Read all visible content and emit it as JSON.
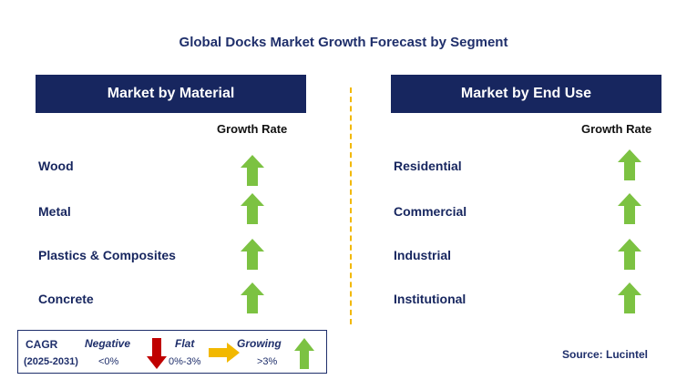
{
  "title": "Global Docks Market Growth Forecast by Segment",
  "left_panel": {
    "header": "Market by Material",
    "growth_label": "Growth Rate",
    "rows": [
      {
        "label": "Wood",
        "trend": "growing"
      },
      {
        "label": "Metal",
        "trend": "growing"
      },
      {
        "label": "Plastics & Composites",
        "trend": "growing"
      },
      {
        "label": "Concrete",
        "trend": "growing"
      }
    ]
  },
  "right_panel": {
    "header": "Market by End Use",
    "growth_label": "Growth Rate",
    "rows": [
      {
        "label": "Residential",
        "trend": "growing"
      },
      {
        "label": "Commercial",
        "trend": "growing"
      },
      {
        "label": "Industrial",
        "trend": "growing"
      },
      {
        "label": "Institutional",
        "trend": "growing"
      }
    ]
  },
  "legend": {
    "cagr": "CAGR",
    "years": "(2025-2031)",
    "negative": "Negative",
    "negative_value": "<0%",
    "flat": "Flat",
    "flat_value": "0%-3%",
    "growing": "Growing",
    "growing_value": ">3%"
  },
  "source": "Source: Lucintel",
  "colors": {
    "header_bg": "#17265f",
    "title": "#1f2f6b",
    "growing": "#7cc242",
    "negative": "#c00000",
    "flat": "#f2b800",
    "divider": "#f2b800"
  }
}
